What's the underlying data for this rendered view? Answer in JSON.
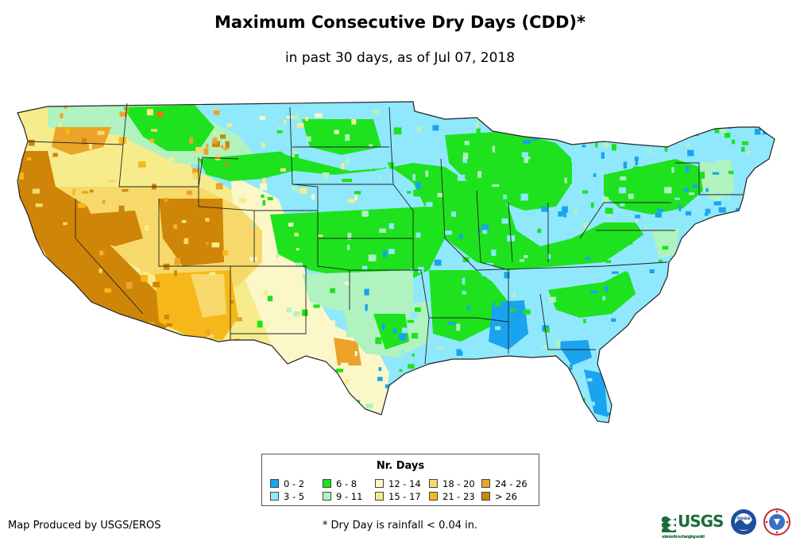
{
  "title": "Maximum Consecutive Dry Days (CDD)*",
  "subtitle": "in past 30 days, as of Jul 07, 2018",
  "legend": {
    "title": "Nr. Days",
    "items": [
      {
        "label": "0 - 2",
        "color": "#1aa3ee"
      },
      {
        "label": "3 - 5",
        "color": "#8fe8fb"
      },
      {
        "label": "6 - 8",
        "color": "#1de21d"
      },
      {
        "label": "9 - 11",
        "color": "#b0f3c0"
      },
      {
        "label": "12 - 14",
        "color": "#fcf7c8"
      },
      {
        "label": "15 - 17",
        "color": "#f7ec8c"
      },
      {
        "label": "18 - 20",
        "color": "#f6d96a"
      },
      {
        "label": "21 - 23",
        "color": "#f5b71a"
      },
      {
        "label": "24 - 26",
        "color": "#eba32a"
      },
      {
        "label": "> 26",
        "color": "#cf8508"
      }
    ]
  },
  "credit": "Map Produced by USGS/EROS",
  "footnote": "* Dry Day is rainfall < 0.04 in.",
  "logos": {
    "usgs": "USGS",
    "usgs_tagline": "science for a changing world",
    "noaa": "noaa",
    "nws": "NATIONAL WEATHER SERVICE"
  }
}
